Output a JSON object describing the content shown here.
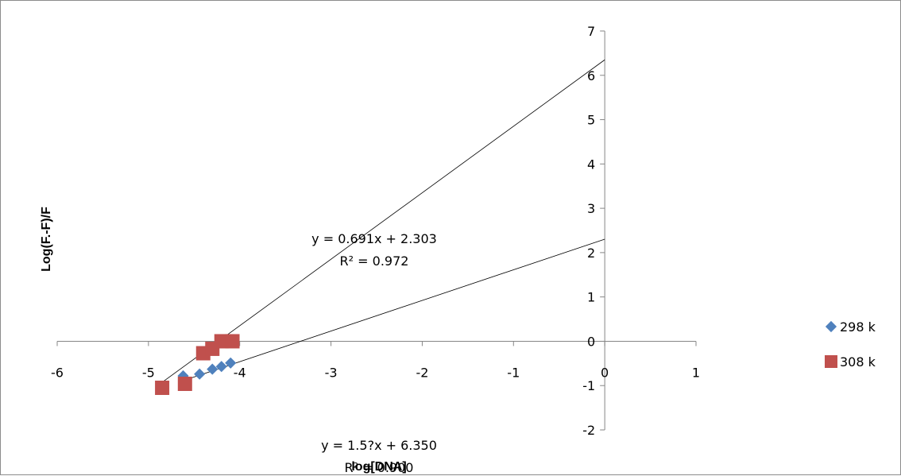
{
  "chart_data": {
    "type": "scatter",
    "title": "",
    "xlabel": "log[DNA]",
    "ylabel": "Log(F.-F)/F",
    "xlim": [
      -6,
      1
    ],
    "ylim": [
      -2,
      7
    ],
    "x_ticks": [
      "-6",
      "-5",
      "-4",
      "-3",
      "-2",
      "-1",
      "0",
      "1"
    ],
    "y_ticks": [
      "-2",
      "-1",
      "0",
      "1",
      "2",
      "3",
      "4",
      "5",
      "6",
      "7"
    ],
    "grid": false,
    "legend_position": "right",
    "series": [
      {
        "name": "298 k",
        "marker": "diamond",
        "color": "#4f81bd",
        "points": [
          [
            -4.62,
            -0.78
          ],
          [
            -4.44,
            -0.74
          ],
          [
            -4.3,
            -0.63
          ],
          [
            -4.2,
            -0.57
          ],
          [
            -4.1,
            -0.49
          ]
        ],
        "trendline": {
          "slope": 0.691,
          "intercept": 2.303,
          "label": "y = 0.691x + 2.303",
          "r2": "R² = 0.972"
        }
      },
      {
        "name": "308 k",
        "marker": "square",
        "color": "#c0504d",
        "points": [
          [
            -4.85,
            -1.05
          ],
          [
            -4.6,
            -0.96
          ],
          [
            -4.4,
            -0.27
          ],
          [
            -4.3,
            -0.17
          ],
          [
            -4.2,
            0.0
          ],
          [
            -4.08,
            0.0
          ]
        ],
        "trendline": {
          "slope": 1.5,
          "intercept": 6.35,
          "label": "y = 1.5?x + 6.350",
          "r2": "R² = 0.900"
        }
      }
    ]
  }
}
